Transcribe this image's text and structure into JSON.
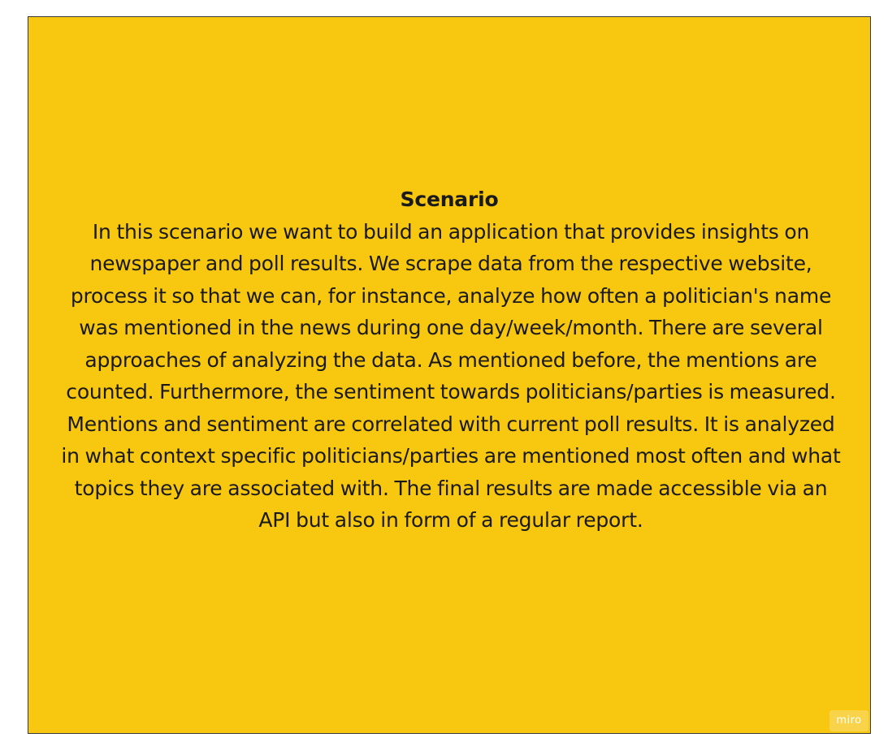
{
  "sticky_note": {
    "title": "Scenario",
    "body": "In this scenario we want to build an application that provides insights on newspaper and poll results. We scrape data from the respective website, process it so that we can, for instance, analyze how often a politician's name was mentioned in the news during one day/week/month. There are several approaches of analyzing the data. As mentioned before, the mentions are counted. Furthermore, the sentiment towards politicians/parties is measured. Mentions and sentiment are correlated with current poll results. It is analyzed in what context specific politicians/parties are mentioned most often and what topics they are associated with. The final results are made accessible via an API but also in form of a regular report.",
    "color": "#f8c70f"
  },
  "watermark": {
    "label": "miro"
  }
}
